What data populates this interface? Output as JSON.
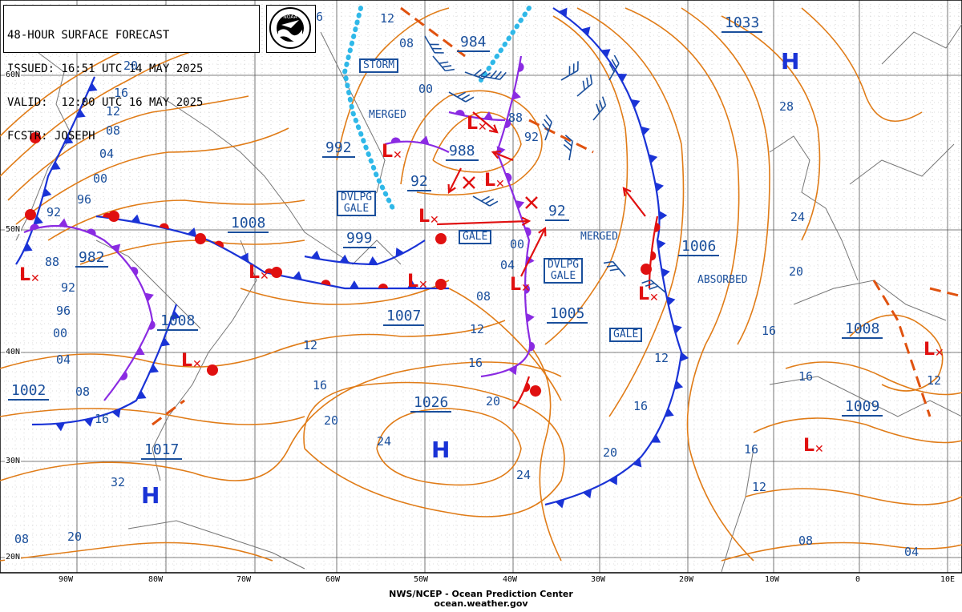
{
  "header": {
    "title": "48-HOUR SURFACE FORECAST",
    "issued": "ISSUED: 16:51 UTC 14 MAY 2025",
    "valid": "VALID:  12:00 UTC 16 MAY 2025",
    "forecaster": "FCSTR: JOSEPH",
    "logo_text": "NOAA"
  },
  "footer": {
    "line1": "NWS/NCEP - Ocean Prediction Center",
    "line2": "ocean.weather.gov"
  },
  "axes": {
    "lon_labels": [
      "90W",
      "80W",
      "70W",
      "60W",
      "50W",
      "40W",
      "30W",
      "20W",
      "10W",
      "0",
      "10E"
    ],
    "lat_labels": [
      "60N",
      "50N",
      "40N",
      "30N",
      "20N"
    ]
  },
  "colors": {
    "isobar": "#e07c18",
    "cold_front": "#1a33d6",
    "warm_front": "#e01010",
    "occluded": "#8a2be2",
    "label_blue": "#1a4f9c",
    "ice": "#2fb8e8"
  },
  "pressure_centers": [
    {
      "value": "1033"
    },
    {
      "value": "984"
    },
    {
      "value": "992"
    },
    {
      "value": "988"
    },
    {
      "value": "92"
    },
    {
      "value": "92"
    },
    {
      "value": "1008"
    },
    {
      "value": "999"
    },
    {
      "value": "982"
    },
    {
      "value": "1008"
    },
    {
      "value": "1007"
    },
    {
      "value": "1005"
    },
    {
      "value": "1006"
    },
    {
      "value": "1002"
    },
    {
      "value": "1026"
    },
    {
      "value": "1017"
    },
    {
      "value": "1008"
    },
    {
      "value": "1009"
    }
  ],
  "boxed_labels": [
    "STORM",
    "DVLPG\nGALE",
    "GALE",
    "DVLPG\nGALE",
    "GALE"
  ],
  "text_labels": [
    "MERGED",
    "MERGED",
    "ABSORBED"
  ],
  "isobar_labels": [
    "6",
    "12",
    "08",
    "00",
    "20",
    "16",
    "12",
    "08",
    "04",
    "00",
    "96",
    "92",
    "88",
    "92",
    "96",
    "00",
    "04",
    "08",
    "16",
    "88",
    "92",
    "00",
    "04",
    "08",
    "12",
    "16",
    "20",
    "12",
    "16",
    "20",
    "24",
    "24",
    "20",
    "16",
    "12",
    "16",
    "20",
    "24",
    "28",
    "32",
    "20",
    "16",
    "12",
    "08",
    "04",
    "16",
    "12",
    "12",
    "20",
    "08"
  ],
  "systems": {
    "highs": [
      "H",
      "H",
      "H"
    ],
    "lows": [
      "L",
      "L",
      "L",
      "L",
      "L",
      "L",
      "L",
      "L",
      "L",
      "L",
      "L",
      "L"
    ]
  }
}
